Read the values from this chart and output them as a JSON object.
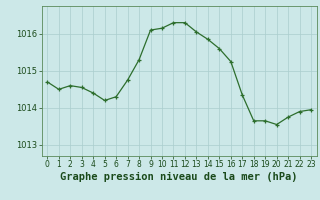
{
  "x": [
    0,
    1,
    2,
    3,
    4,
    5,
    6,
    7,
    8,
    9,
    10,
    11,
    12,
    13,
    14,
    15,
    16,
    17,
    18,
    19,
    20,
    21,
    22,
    23
  ],
  "y": [
    1014.7,
    1014.5,
    1014.6,
    1014.55,
    1014.4,
    1014.2,
    1014.3,
    1014.75,
    1015.3,
    1016.1,
    1016.15,
    1016.3,
    1016.3,
    1016.05,
    1015.85,
    1015.6,
    1015.25,
    1014.35,
    1013.65,
    1013.65,
    1013.55,
    1013.75,
    1013.9,
    1013.95
  ],
  "line_color": "#2d6e2d",
  "marker": "+",
  "marker_color": "#2d6e2d",
  "bg_color": "#cce8e8",
  "grid_color": "#aacece",
  "border_color": "#5a8a5a",
  "xlabel": "Graphe pression niveau de la mer (hPa)",
  "xlabel_color": "#1a4a1a",
  "tick_labels": [
    "0",
    "1",
    "2",
    "3",
    "4",
    "5",
    "6",
    "7",
    "8",
    "9",
    "10",
    "11",
    "12",
    "13",
    "14",
    "15",
    "16",
    "17",
    "18",
    "19",
    "20",
    "21",
    "22",
    "23"
  ],
  "yticks": [
    1013,
    1014,
    1015,
    1016
  ],
  "ylim": [
    1012.7,
    1016.75
  ],
  "xlim": [
    -0.5,
    23.5
  ],
  "xlabel_fontsize": 7.5,
  "tick_fontsize": 6.0
}
